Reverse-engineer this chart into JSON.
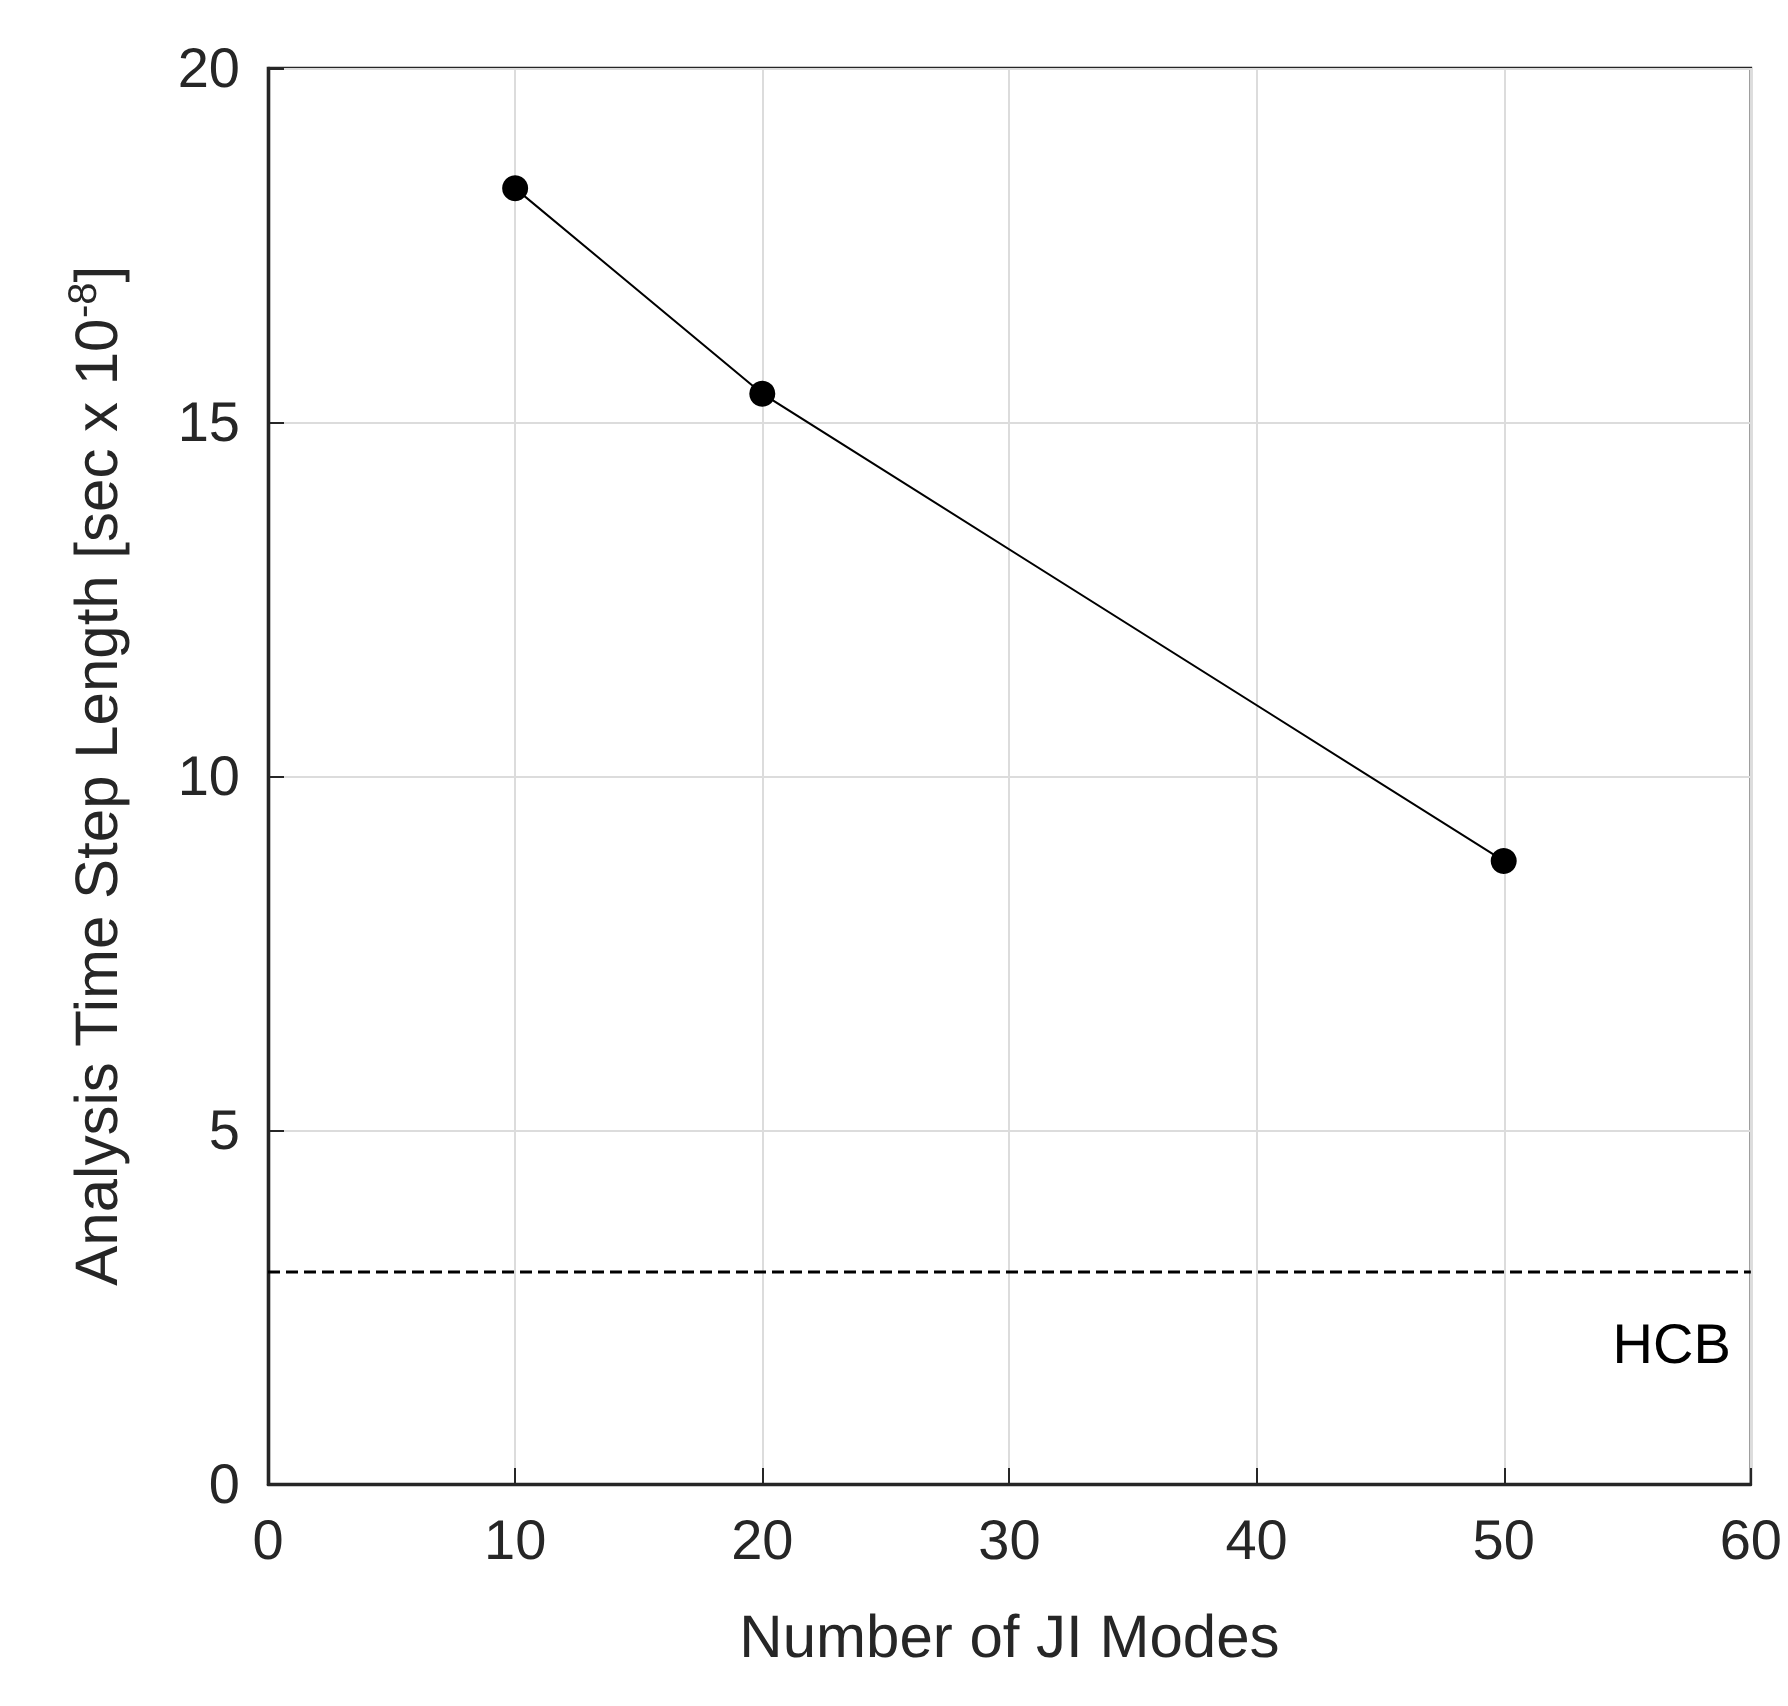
{
  "chart_data": {
    "type": "line",
    "xlabel": "Number of JI Modes",
    "ylabel": "Analysis Time Step Length [sec x 10$^{-8}$]",
    "x": [
      10,
      20,
      50
    ],
    "series": [
      {
        "color": "#000000",
        "values": [
          18.3,
          15.4,
          8.8
        ]
      }
    ],
    "xlim": [
      0,
      60
    ],
    "xticks": [
      0,
      10,
      20,
      30,
      40,
      50,
      60
    ],
    "ylim": [
      0,
      20
    ],
    "yticks": [
      0,
      5,
      10,
      15,
      20
    ],
    "ref_lines": [
      {
        "axis": "y",
        "value": 3,
        "label": "HCB",
        "color": "#000000",
        "line_style": "dashed"
      }
    ],
    "grid": true,
    "marker": "circle",
    "line_style": "solid"
  }
}
